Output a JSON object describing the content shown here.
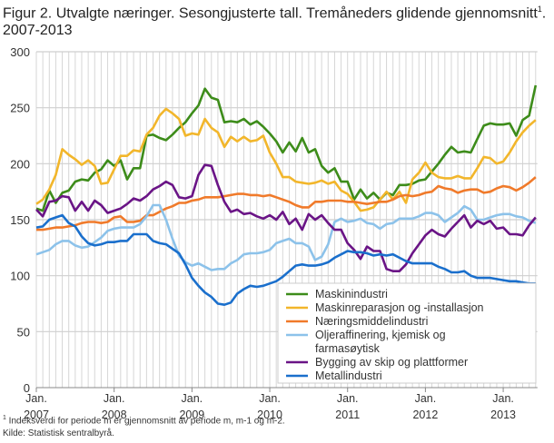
{
  "title_main": "Figur 2. Utvalgte næringer. Sesongjusterte tall. Tremåneders glidende gjennomsnitt",
  "title_sup": "1",
  "title_tail": ". 2007-2013",
  "footnote_mark": "1",
  "footnote": " Indeksverdi for periode m er gjennomsnitt av periode m, m-1 og m-2.",
  "source": "Kilde: Statistisk sentralbyrå.",
  "chart_data": {
    "type": "line",
    "x_start": "2007-01",
    "x_end": "2013-06",
    "x_frequency": "monthly",
    "xlabel": "",
    "ylabel": "",
    "ylim": [
      0,
      300
    ],
    "yticks": [
      "0",
      "50",
      "100",
      "150",
      "200",
      "250",
      "300"
    ],
    "xticks": [
      {
        "l1": "Jan.",
        "l2": "2007"
      },
      {
        "l1": "Jan.",
        "l2": "2008"
      },
      {
        "l1": "Jan.",
        "l2": "2009"
      },
      {
        "l1": "Jan.",
        "l2": "2010"
      },
      {
        "l1": "Jan.",
        "l2": "2011"
      },
      {
        "l1": "Jan.",
        "l2": "2012"
      },
      {
        "l1": "Jan.",
        "l2": "2013"
      }
    ],
    "grid": true,
    "legend_position": "bottom-right",
    "series": [
      {
        "name": "Maskinindustri",
        "color": "#3d8c1a",
        "values": [
          160,
          158,
          176,
          165,
          174,
          176,
          184,
          186,
          185,
          192,
          195,
          203,
          198,
          203,
          186,
          196,
          196,
          225,
          226,
          223,
          221,
          226,
          232,
          237,
          245,
          252,
          267,
          259,
          257,
          237,
          238,
          237,
          240,
          235,
          238,
          233,
          227,
          220,
          210,
          219,
          211,
          223,
          210,
          213,
          198,
          192,
          196,
          184,
          184,
          168,
          177,
          169,
          174,
          168,
          174,
          172,
          181,
          181,
          182,
          185,
          186,
          193,
          200,
          208,
          215,
          210,
          211,
          210,
          222,
          234,
          236,
          235,
          235,
          236,
          225,
          239,
          243,
          270
        ]
      },
      {
        "name": "Maskinreparasjon og -installasjon",
        "color": "#f2b62b",
        "values": [
          164,
          168,
          177,
          190,
          213,
          208,
          204,
          199,
          203,
          198,
          182,
          183,
          195,
          207,
          207,
          212,
          211,
          226,
          232,
          243,
          249,
          245,
          240,
          225,
          227,
          226,
          240,
          232,
          228,
          215,
          224,
          220,
          224,
          220,
          221,
          225,
          210,
          200,
          188,
          188,
          184,
          183,
          182,
          183,
          185,
          182,
          184,
          176,
          173,
          166,
          158,
          159,
          161,
          168,
          175,
          168,
          175,
          165,
          186,
          192,
          201,
          192,
          188,
          187,
          187,
          189,
          187,
          187,
          196,
          206,
          205,
          200,
          202,
          210,
          220,
          228,
          234,
          239
        ]
      },
      {
        "name": "Næringsmiddelindustri",
        "color": "#f07a2a",
        "values": [
          141,
          141,
          142,
          143,
          143,
          144,
          145,
          147,
          148,
          148,
          147,
          148,
          152,
          153,
          148,
          148,
          149,
          154,
          154,
          157,
          160,
          162,
          165,
          165,
          167,
          168,
          170,
          170,
          170,
          171,
          172,
          173,
          173,
          172,
          172,
          171,
          172,
          170,
          168,
          166,
          163,
          161,
          161,
          166,
          166,
          167,
          167,
          167,
          166,
          166,
          165,
          164,
          165,
          166,
          166,
          168,
          171,
          172,
          171,
          172,
          174,
          175,
          180,
          178,
          177,
          174,
          176,
          177,
          177,
          174,
          175,
          178,
          180,
          179,
          176,
          179,
          183,
          188
        ]
      },
      {
        "name": "Oljeraffinering, kjemisk og farmasøytisk",
        "color": "#8cc2ea",
        "values": [
          119,
          121,
          123,
          128,
          131,
          131,
          127,
          125,
          126,
          130,
          134,
          140,
          142,
          143,
          143,
          143,
          146,
          153,
          163,
          163,
          150,
          133,
          118,
          112,
          109,
          111,
          108,
          105,
          106,
          106,
          111,
          114,
          119,
          120,
          120,
          121,
          123,
          129,
          131,
          133,
          129,
          129,
          126,
          114,
          117,
          128,
          148,
          151,
          148,
          149,
          151,
          147,
          146,
          142,
          146,
          147,
          151,
          151,
          151,
          153,
          156,
          156,
          154,
          148,
          152,
          156,
          162,
          159,
          150,
          150,
          152,
          154,
          155,
          155,
          153,
          152,
          149,
          147
        ]
      },
      {
        "name": "Bygging av skip og plattformer",
        "color": "#6a1486",
        "values": [
          159,
          153,
          166,
          167,
          171,
          170,
          158,
          166,
          158,
          167,
          163,
          156,
          158,
          160,
          164,
          169,
          167,
          171,
          177,
          180,
          184,
          181,
          170,
          169,
          171,
          190,
          199,
          198,
          181,
          166,
          157,
          159,
          155,
          156,
          153,
          151,
          154,
          150,
          157,
          146,
          151,
          141,
          155,
          150,
          154,
          147,
          141,
          141,
          129,
          123,
          115,
          126,
          122,
          122,
          106,
          104,
          104,
          110,
          120,
          128,
          136,
          141,
          137,
          135,
          142,
          148,
          154,
          143,
          149,
          146,
          149,
          142,
          143,
          137,
          137,
          136,
          145,
          152
        ]
      },
      {
        "name": "Metallindustri",
        "color": "#1a6fcc",
        "values": [
          143,
          144,
          150,
          152,
          154,
          147,
          144,
          135,
          129,
          127,
          128,
          130,
          130,
          131,
          131,
          137,
          137,
          137,
          131,
          129,
          128,
          124,
          120,
          110,
          98,
          91,
          85,
          81,
          75,
          74,
          76,
          84,
          88,
          91,
          90,
          91,
          93,
          95,
          99,
          104,
          109,
          110,
          109,
          109,
          110,
          112,
          116,
          119,
          122,
          121,
          121,
          120,
          118,
          119,
          118,
          119,
          116,
          113,
          111,
          111,
          111,
          111,
          108,
          106,
          103,
          103,
          104,
          100,
          98,
          98,
          98,
          97,
          96,
          95,
          95,
          94,
          93,
          93
        ]
      }
    ]
  }
}
